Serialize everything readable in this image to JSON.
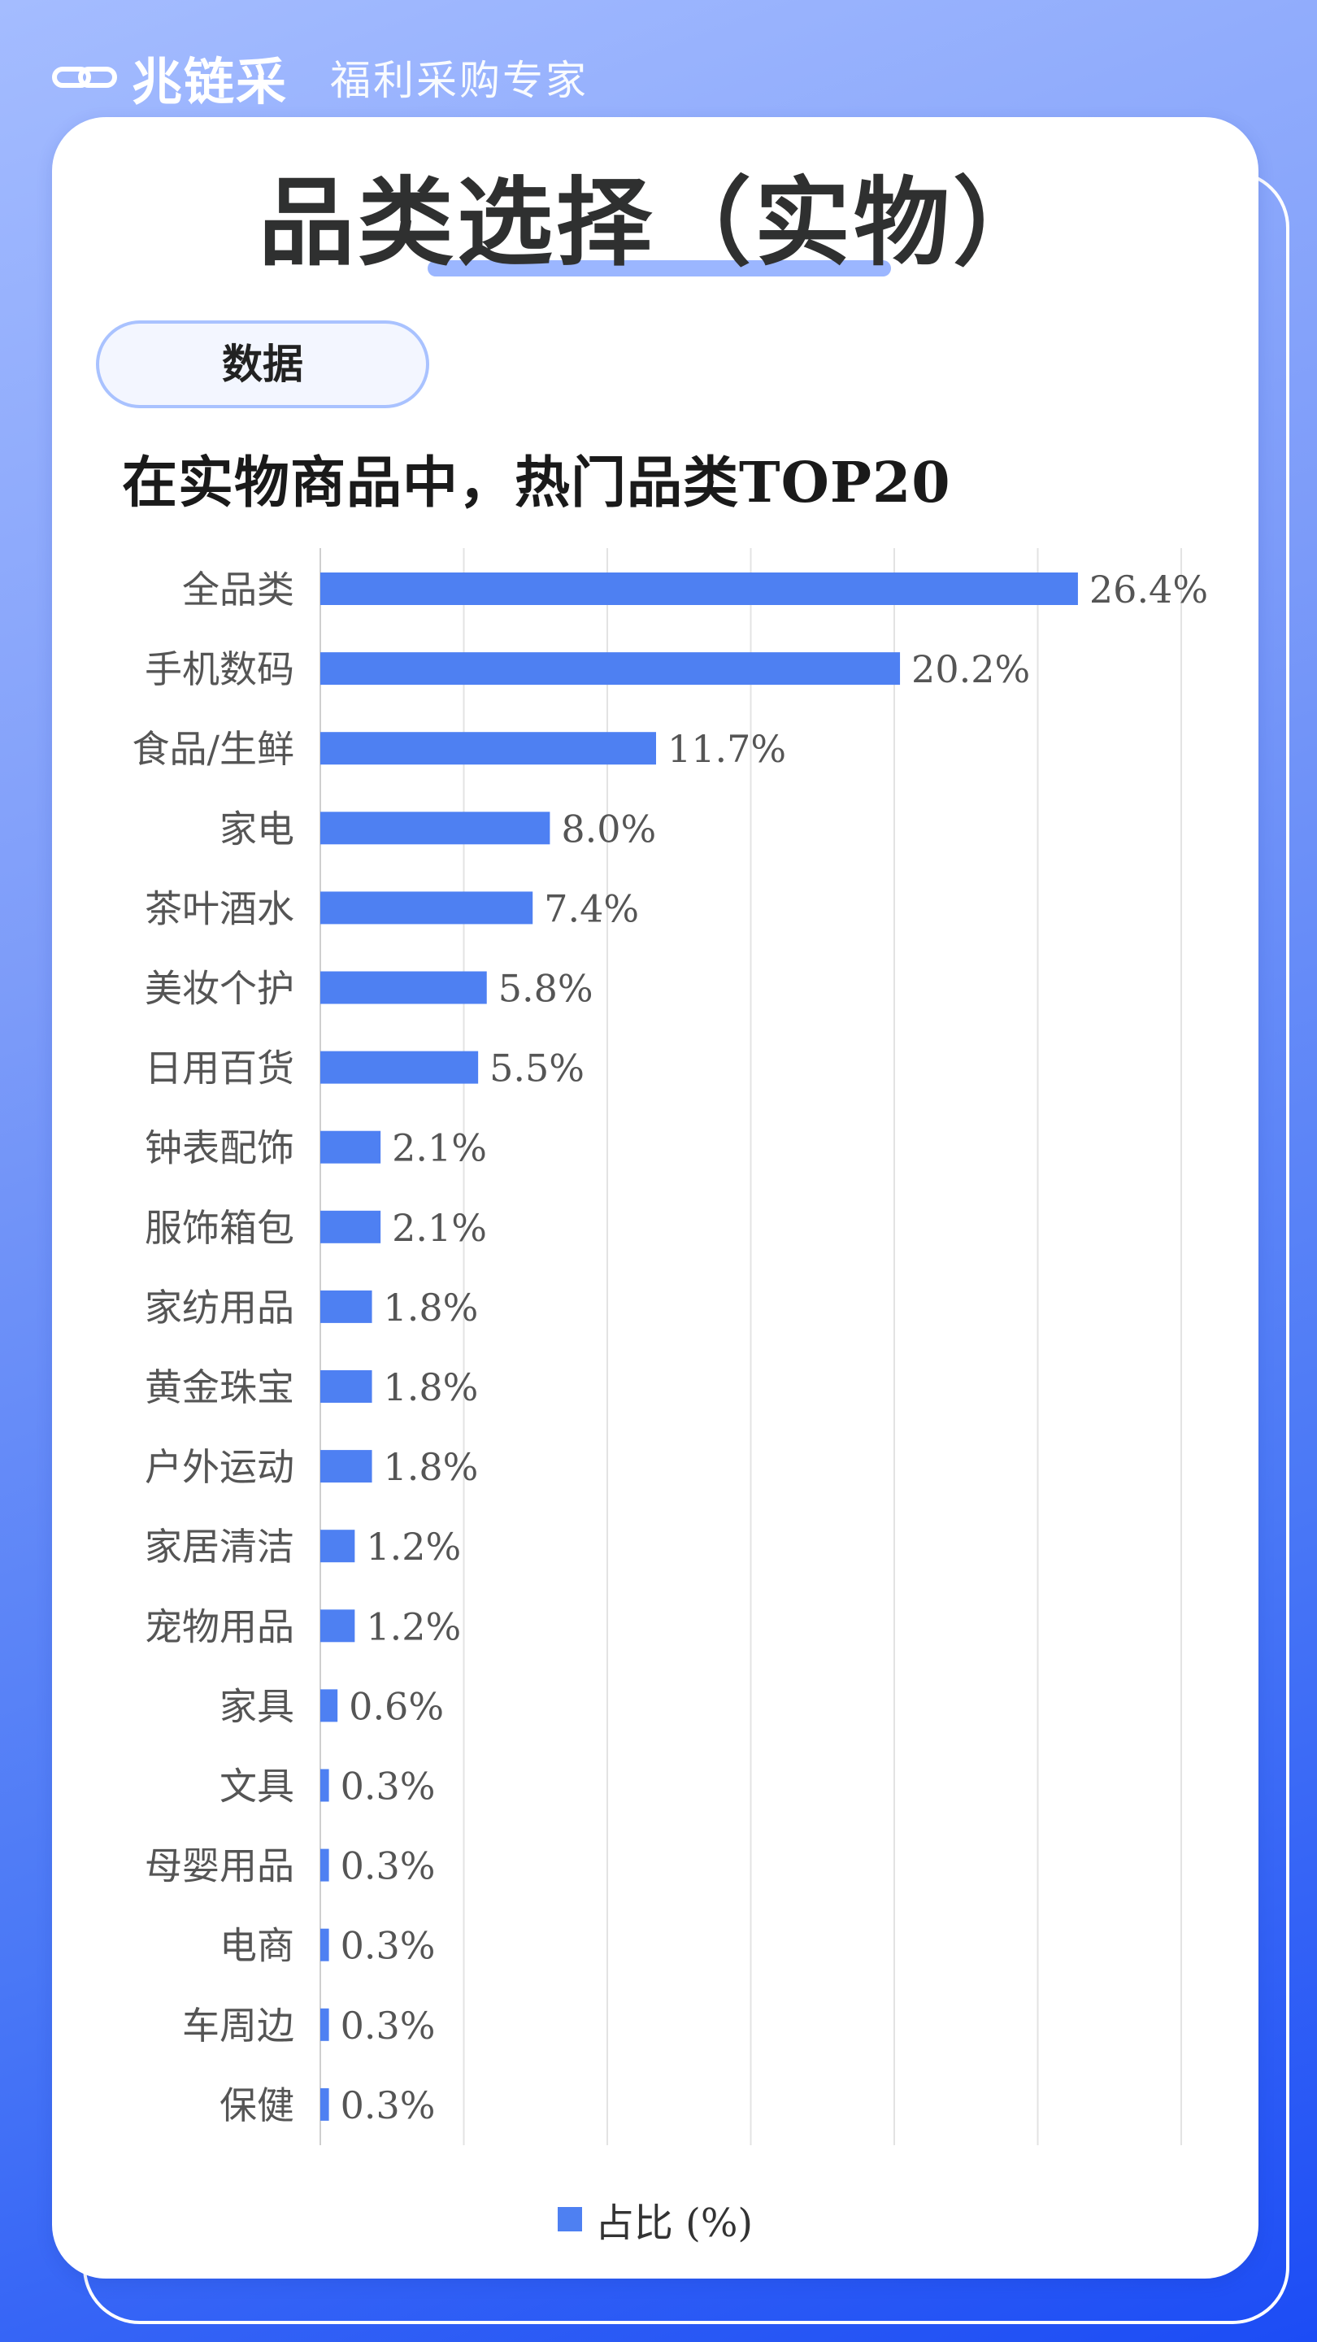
{
  "brand": {
    "name": "兆链采",
    "slogan": "福利采购专家",
    "icon": "chain-link-icon"
  },
  "page": {
    "title": "品类选择（实物）",
    "section_tag": "数据",
    "chart_heading": "在实物商品中，热门品类TOP20"
  },
  "colors": {
    "bar": "#4e80f2",
    "accent": "#9bb6ff",
    "grid": "#e3e3e3"
  },
  "legend": {
    "label": "占比 (%)"
  },
  "chart_data": {
    "type": "bar",
    "orientation": "horizontal",
    "categories": [
      "全品类",
      "手机数码",
      "食品/生鲜",
      "家电",
      "茶叶酒水",
      "美妆个护",
      "日用百货",
      "钟表配饰",
      "服饰箱包",
      "家纺用品",
      "黄金珠宝",
      "户外运动",
      "家居清洁",
      "宠物用品",
      "家具",
      "文具",
      "母婴用品",
      "电商",
      "车周边",
      "保健"
    ],
    "series": [
      {
        "name": "占比 (%)",
        "values": [
          26.4,
          20.2,
          11.7,
          8.0,
          7.4,
          5.8,
          5.5,
          2.1,
          2.1,
          1.8,
          1.8,
          1.8,
          1.2,
          1.2,
          0.6,
          0.3,
          0.3,
          0.3,
          0.3,
          0.3
        ]
      }
    ],
    "data_labels": [
      "26.4%",
      "20.2%",
      "11.7%",
      "8.0%",
      "7.4%",
      "5.8%",
      "5.5%",
      "2.1%",
      "2.1%",
      "1.8%",
      "1.8%",
      "1.8%",
      "1.2%",
      "1.2%",
      "0.6%",
      "0.3%",
      "0.3%",
      "0.3%",
      "0.3%",
      "0.3%"
    ],
    "xlim": [
      0,
      30
    ],
    "grid": true,
    "legend_position": "bottom"
  }
}
